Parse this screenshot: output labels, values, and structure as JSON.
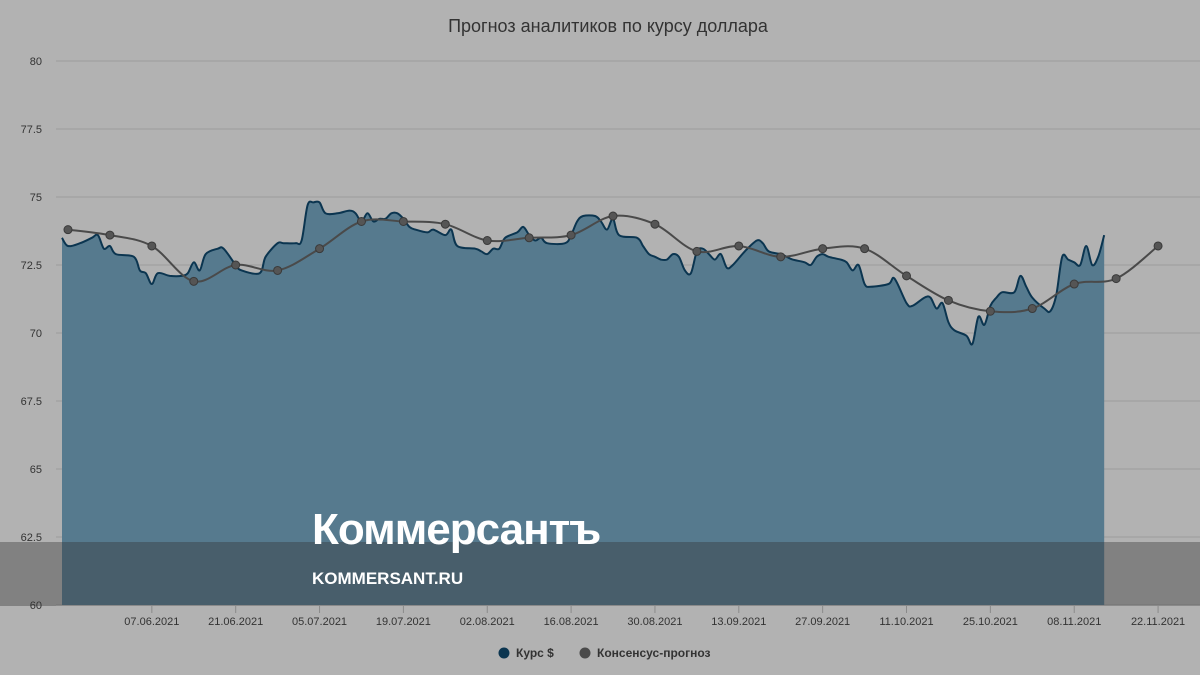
{
  "colors": {
    "background": "#b2b2b2",
    "grid": "#9c9c9c",
    "area_fill": "#567a8e",
    "area_line": "#0b3550",
    "forecast_line": "#4a4a4a",
    "forecast_marker": "#555555",
    "text": "#333333"
  },
  "watermark": {
    "logo": "Коммерсантъ",
    "url": "KOMMERSANT.RU"
  },
  "chart_data": {
    "type": "area",
    "title": "Прогноз аналитиков по курсу доллара",
    "xlabel": "",
    "ylabel": "",
    "ylim": [
      60,
      80
    ],
    "yticks": [
      60,
      62.5,
      65,
      67.5,
      70,
      72.5,
      75,
      77.5,
      80
    ],
    "ytick_labels": [
      "60",
      "62.5",
      "65",
      "67.5",
      "70",
      "72.5",
      "75",
      "77.5",
      "80"
    ],
    "xlim": [
      "2021-05-22",
      "2021-11-29"
    ],
    "xticks": [
      "2021-06-07",
      "2021-06-21",
      "2021-07-05",
      "2021-07-19",
      "2021-08-02",
      "2021-08-16",
      "2021-08-30",
      "2021-09-13",
      "2021-09-27",
      "2021-10-11",
      "2021-10-25",
      "2021-11-08",
      "2021-11-22"
    ],
    "xtick_labels": [
      "07.06.2021",
      "21.06.2021",
      "05.07.2021",
      "19.07.2021",
      "02.08.2021",
      "16.08.2021",
      "30.08.2021",
      "13.09.2021",
      "27.09.2021",
      "11.10.2021",
      "25.10.2021",
      "08.11.2021",
      "22.11.2021"
    ],
    "grid": true,
    "legend_position": "bottom-center",
    "series": [
      {
        "name": "Курс $",
        "kind": "area",
        "color": "#0b3550",
        "points": [
          [
            "2021-05-23",
            73.5
          ],
          [
            "2021-05-24",
            73.2
          ],
          [
            "2021-05-26",
            73.3
          ],
          [
            "2021-05-28",
            73.5
          ],
          [
            "2021-05-29",
            73.6
          ],
          [
            "2021-05-30",
            73.1
          ],
          [
            "2021-05-31",
            73.2
          ],
          [
            "2021-06-01",
            72.9
          ],
          [
            "2021-06-04",
            72.8
          ],
          [
            "2021-06-05",
            72.3
          ],
          [
            "2021-06-06",
            72.2
          ],
          [
            "2021-06-07",
            71.8
          ],
          [
            "2021-06-08",
            72.2
          ],
          [
            "2021-06-10",
            72.1
          ],
          [
            "2021-06-12",
            72.1
          ],
          [
            "2021-06-13",
            72.2
          ],
          [
            "2021-06-14",
            72.6
          ],
          [
            "2021-06-15",
            72.3
          ],
          [
            "2021-06-16",
            72.9
          ],
          [
            "2021-06-18",
            73.1
          ],
          [
            "2021-06-19",
            73.1
          ],
          [
            "2021-06-21",
            72.5
          ],
          [
            "2021-06-22",
            72.3
          ],
          [
            "2021-06-25",
            72.2
          ],
          [
            "2021-06-26",
            72.8
          ],
          [
            "2021-06-28",
            73.3
          ],
          [
            "2021-06-29",
            73.3
          ],
          [
            "2021-07-01",
            73.3
          ],
          [
            "2021-07-02",
            73.4
          ],
          [
            "2021-07-03",
            74.7
          ],
          [
            "2021-07-04",
            74.8
          ],
          [
            "2021-07-05",
            74.8
          ],
          [
            "2021-07-06",
            74.4
          ],
          [
            "2021-07-08",
            74.4
          ],
          [
            "2021-07-10",
            74.5
          ],
          [
            "2021-07-11",
            74.4
          ],
          [
            "2021-07-12",
            74.1
          ],
          [
            "2021-07-13",
            74.4
          ],
          [
            "2021-07-14",
            74.1
          ],
          [
            "2021-07-15",
            74.2
          ],
          [
            "2021-07-16",
            74.2
          ],
          [
            "2021-07-17",
            74.4
          ],
          [
            "2021-07-18",
            74.4
          ],
          [
            "2021-07-19",
            74.2
          ],
          [
            "2021-07-20",
            73.9
          ],
          [
            "2021-07-21",
            73.8
          ],
          [
            "2021-07-23",
            73.7
          ],
          [
            "2021-07-24",
            73.8
          ],
          [
            "2021-07-26",
            73.6
          ],
          [
            "2021-07-27",
            73.8
          ],
          [
            "2021-07-28",
            73.2
          ],
          [
            "2021-07-31",
            73.1
          ],
          [
            "2021-08-01",
            73.0
          ],
          [
            "2021-08-02",
            72.9
          ],
          [
            "2021-08-03",
            73.1
          ],
          [
            "2021-08-04",
            73.1
          ],
          [
            "2021-08-05",
            73.5
          ],
          [
            "2021-08-07",
            73.7
          ],
          [
            "2021-08-08",
            73.9
          ],
          [
            "2021-08-09",
            73.6
          ],
          [
            "2021-08-10",
            73.4
          ],
          [
            "2021-08-11",
            73.5
          ],
          [
            "2021-08-12",
            73.3
          ],
          [
            "2021-08-15",
            73.3
          ],
          [
            "2021-08-16",
            73.6
          ],
          [
            "2021-08-17",
            74.1
          ],
          [
            "2021-08-18",
            74.3
          ],
          [
            "2021-08-20",
            74.3
          ],
          [
            "2021-08-21",
            74.1
          ],
          [
            "2021-08-22",
            73.8
          ],
          [
            "2021-08-23",
            74.2
          ],
          [
            "2021-08-24",
            73.6
          ],
          [
            "2021-08-27",
            73.5
          ],
          [
            "2021-08-28",
            73.2
          ],
          [
            "2021-08-29",
            72.9
          ],
          [
            "2021-08-30",
            72.8
          ],
          [
            "2021-08-31",
            72.7
          ],
          [
            "2021-09-01",
            72.7
          ],
          [
            "2021-09-02",
            72.9
          ],
          [
            "2021-09-03",
            72.8
          ],
          [
            "2021-09-04",
            72.3
          ],
          [
            "2021-09-05",
            72.2
          ],
          [
            "2021-09-06",
            73.0
          ],
          [
            "2021-09-07",
            73.1
          ],
          [
            "2021-09-08",
            72.9
          ],
          [
            "2021-09-09",
            72.7
          ],
          [
            "2021-09-10",
            72.9
          ],
          [
            "2021-09-11",
            72.4
          ],
          [
            "2021-09-12",
            72.5
          ],
          [
            "2021-09-14",
            73.0
          ],
          [
            "2021-09-16",
            73.4
          ],
          [
            "2021-09-17",
            73.3
          ],
          [
            "2021-09-18",
            73.0
          ],
          [
            "2021-09-20",
            72.9
          ],
          [
            "2021-09-21",
            72.8
          ],
          [
            "2021-09-22",
            72.7
          ],
          [
            "2021-09-24",
            72.6
          ],
          [
            "2021-09-25",
            72.5
          ],
          [
            "2021-09-26",
            72.8
          ],
          [
            "2021-09-27",
            72.9
          ],
          [
            "2021-09-28",
            72.8
          ],
          [
            "2021-09-30",
            72.7
          ],
          [
            "2021-10-01",
            72.6
          ],
          [
            "2021-10-02",
            72.3
          ],
          [
            "2021-10-03",
            72.5
          ],
          [
            "2021-10-04",
            71.8
          ],
          [
            "2021-10-05",
            71.7
          ],
          [
            "2021-10-08",
            71.8
          ],
          [
            "2021-10-09",
            72.0
          ],
          [
            "2021-10-11",
            71.1
          ],
          [
            "2021-10-12",
            71.0
          ],
          [
            "2021-10-14",
            71.3
          ],
          [
            "2021-10-15",
            71.3
          ],
          [
            "2021-10-16",
            70.9
          ],
          [
            "2021-10-17",
            71.1
          ],
          [
            "2021-10-18",
            70.4
          ],
          [
            "2021-10-19",
            70.1
          ],
          [
            "2021-10-21",
            69.9
          ],
          [
            "2021-10-22",
            69.6
          ],
          [
            "2021-10-23",
            70.6
          ],
          [
            "2021-10-24",
            70.3
          ],
          [
            "2021-10-25",
            71.0
          ],
          [
            "2021-10-26",
            71.3
          ],
          [
            "2021-10-27",
            71.5
          ],
          [
            "2021-10-29",
            71.5
          ],
          [
            "2021-10-30",
            72.1
          ],
          [
            "2021-10-31",
            71.7
          ],
          [
            "2021-11-01",
            71.3
          ],
          [
            "2021-11-03",
            70.9
          ],
          [
            "2021-11-04",
            70.8
          ],
          [
            "2021-11-05",
            71.4
          ],
          [
            "2021-11-06",
            72.8
          ],
          [
            "2021-11-07",
            72.7
          ],
          [
            "2021-11-08",
            72.6
          ],
          [
            "2021-11-09",
            72.5
          ],
          [
            "2021-11-10",
            73.2
          ],
          [
            "2021-11-11",
            72.5
          ],
          [
            "2021-11-12",
            72.8
          ],
          [
            "2021-11-13",
            73.6
          ]
        ]
      },
      {
        "name": "Консенсус-прогноз",
        "kind": "line",
        "color": "#4a4a4a",
        "points": [
          [
            "2021-05-24",
            73.8
          ],
          [
            "2021-05-31",
            73.6
          ],
          [
            "2021-06-07",
            73.2
          ],
          [
            "2021-06-14",
            71.9
          ],
          [
            "2021-06-21",
            72.5
          ],
          [
            "2021-06-28",
            72.3
          ],
          [
            "2021-07-05",
            73.1
          ],
          [
            "2021-07-12",
            74.1
          ],
          [
            "2021-07-19",
            74.1
          ],
          [
            "2021-07-26",
            74.0
          ],
          [
            "2021-08-02",
            73.4
          ],
          [
            "2021-08-09",
            73.5
          ],
          [
            "2021-08-16",
            73.6
          ],
          [
            "2021-08-23",
            74.3
          ],
          [
            "2021-08-30",
            74.0
          ],
          [
            "2021-09-06",
            73.0
          ],
          [
            "2021-09-13",
            73.2
          ],
          [
            "2021-09-20",
            72.8
          ],
          [
            "2021-09-27",
            73.1
          ],
          [
            "2021-10-04",
            73.1
          ],
          [
            "2021-10-11",
            72.1
          ],
          [
            "2021-10-18",
            71.2
          ],
          [
            "2021-10-25",
            70.8
          ],
          [
            "2021-11-01",
            70.9
          ],
          [
            "2021-11-08",
            71.8
          ],
          [
            "2021-11-15",
            72.0
          ],
          [
            "2021-11-22",
            73.2
          ]
        ]
      }
    ]
  }
}
